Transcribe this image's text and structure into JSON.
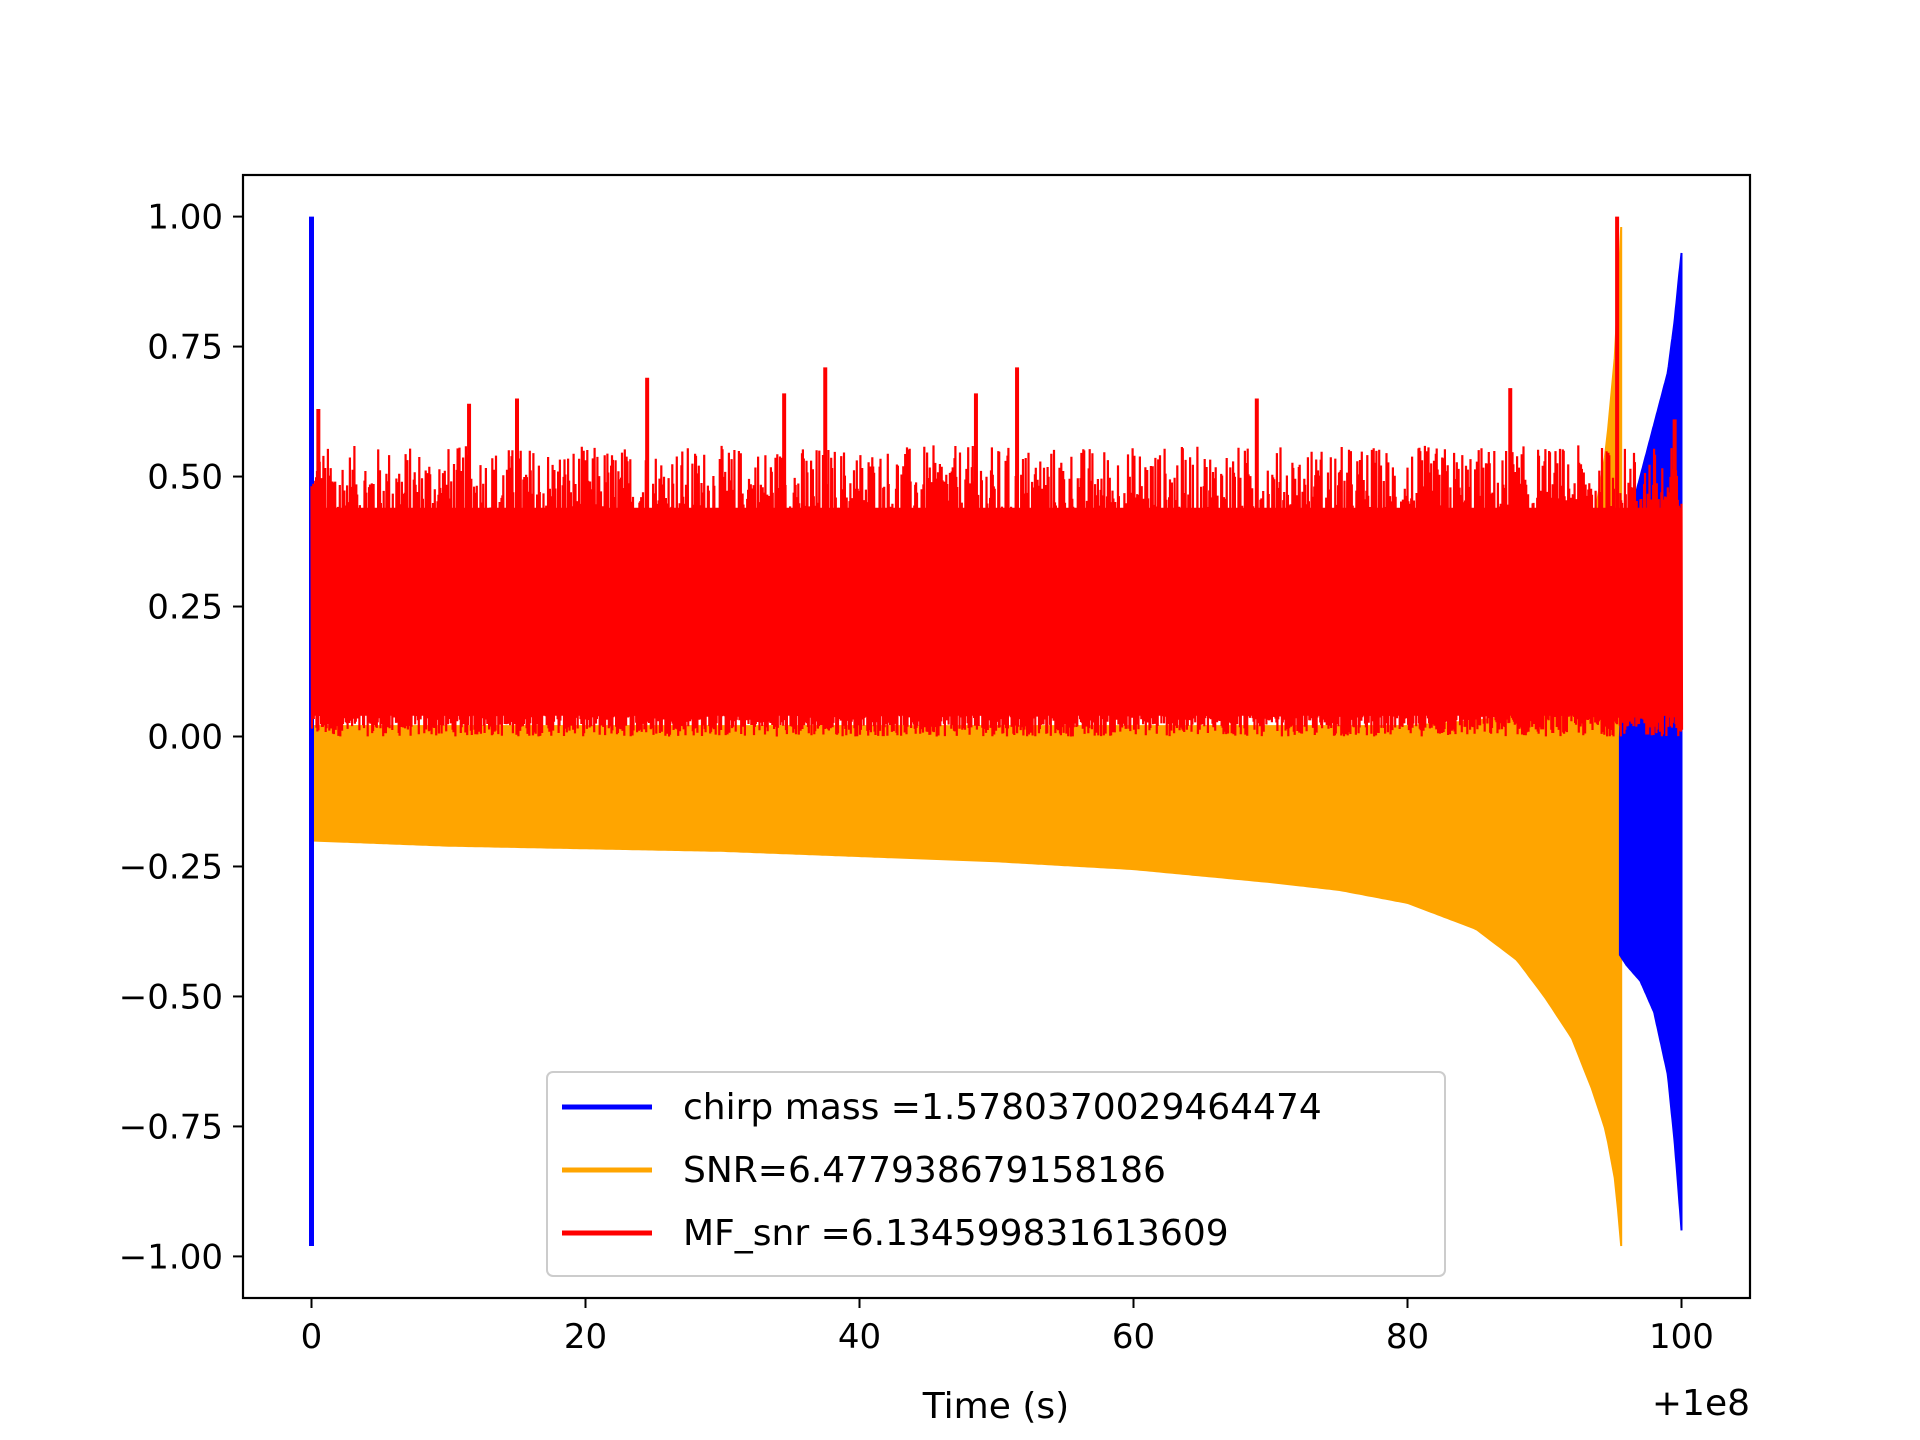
{
  "chart_data": {
    "type": "line",
    "title": "",
    "xlabel": "Time (s)",
    "ylabel": "",
    "x_offset_label": "+1e8",
    "xlim": [
      -5,
      105
    ],
    "ylim": [
      -1.08,
      1.08
    ],
    "x_ticks": [
      0,
      20,
      40,
      60,
      80,
      100
    ],
    "x_tick_labels": [
      "0",
      "20",
      "40",
      "60",
      "80",
      "100"
    ],
    "y_ticks": [
      -1.0,
      -0.75,
      -0.5,
      -0.25,
      0.0,
      0.25,
      0.5,
      0.75,
      1.0
    ],
    "y_tick_labels": [
      "−1.00",
      "−0.75",
      "−0.50",
      "−0.25",
      "0.00",
      "0.25",
      "0.50",
      "0.75",
      "1.00"
    ],
    "grid": false,
    "legend_position": "lower-center",
    "series": [
      {
        "name": "chirp mass =1.5780370029464474",
        "color": "#0000ff",
        "style": "chirp",
        "start_spike": {
          "x": 0.0,
          "max": 1.0,
          "min": -0.98
        },
        "band_x": [
          95.5,
          96,
          97,
          98,
          99,
          99.5,
          99.8,
          100.0
        ],
        "band_upper": [
          0.0,
          0.4,
          0.5,
          0.6,
          0.7,
          0.8,
          0.88,
          0.93
        ],
        "band_lower": [
          -0.42,
          -0.44,
          -0.47,
          -0.53,
          -0.65,
          -0.78,
          -0.88,
          -0.95
        ]
      },
      {
        "name": "SNR=6.477938679158186",
        "color": "#ffa500",
        "style": "band",
        "band_x": [
          0,
          10,
          20,
          30,
          40,
          50,
          60,
          70,
          75,
          80,
          85,
          88,
          90,
          92,
          93.5,
          94.5,
          95.2,
          95.6
        ],
        "band_upper": [
          0.02,
          0.02,
          0.02,
          0.02,
          0.02,
          0.02,
          0.02,
          0.02,
          0.02,
          0.02,
          0.03,
          0.04,
          0.06,
          0.15,
          0.4,
          0.55,
          0.75,
          0.98
        ],
        "band_lower": [
          -0.2,
          -0.21,
          -0.215,
          -0.22,
          -0.23,
          -0.24,
          -0.255,
          -0.28,
          -0.295,
          -0.32,
          -0.37,
          -0.43,
          -0.5,
          -0.58,
          -0.68,
          -0.76,
          -0.86,
          -0.98
        ]
      },
      {
        "name": "MF_snr =6.134599831613609",
        "color": "#ff0000",
        "style": "noise",
        "x_range": [
          0,
          100
        ],
        "baseline": 0.02,
        "typical_upper": 0.45,
        "peaks": [
          {
            "x": 0.5,
            "y": 0.63
          },
          {
            "x": 11.5,
            "y": 0.64
          },
          {
            "x": 15,
            "y": 0.65
          },
          {
            "x": 24.5,
            "y": 0.69
          },
          {
            "x": 34.5,
            "y": 0.66
          },
          {
            "x": 37.5,
            "y": 0.71
          },
          {
            "x": 48.5,
            "y": 0.66
          },
          {
            "x": 51.5,
            "y": 0.71
          },
          {
            "x": 69,
            "y": 0.65
          },
          {
            "x": 87.5,
            "y": 0.67
          },
          {
            "x": 95.3,
            "y": 1.0
          },
          {
            "x": 99.5,
            "y": 0.61
          }
        ]
      }
    ]
  }
}
